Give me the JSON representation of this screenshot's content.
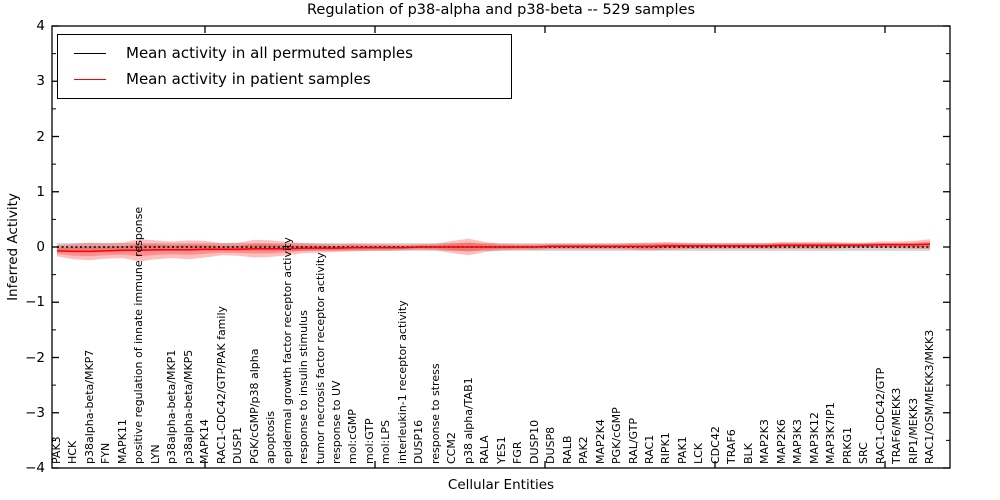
{
  "chart_data": {
    "type": "line",
    "title": "Regulation of p38-alpha and p38-beta -- 529 samples",
    "xlabel": "Cellular Entities",
    "ylabel": "Inferred Activity",
    "ylim": [
      -4,
      4
    ],
    "ytick_labels": [
      "4",
      "3",
      "2",
      "1",
      "0",
      "−1",
      "−2",
      "−3",
      "−4"
    ],
    "grid": false,
    "legend_position": "upper left",
    "legend": [
      {
        "label": "Mean activity in all permuted samples",
        "color": "#000000",
        "line_style": "dashed"
      },
      {
        "label": "Mean activity in patient samples",
        "color": "#ff0000",
        "line_style": "solid"
      }
    ],
    "categories": [
      "PAK3",
      "HCK",
      "p38alpha-beta/MKP7",
      "FYN",
      "MAPK11",
      "positive regulation of innate immune response",
      "LYN",
      "p38alpha-beta/MKP1",
      "p38alpha-beta/MKP5",
      "MAPK14",
      "RAC1-CDC42/GTP/PAK family",
      "DUSP1",
      "PGK/cGMP/p38 alpha",
      "apoptosis",
      "epidermal growth factor receptor activity",
      "response to insulin stimulus",
      "tumor necrosis factor receptor activity",
      "response to UV",
      "mol:cGMP",
      "mol:GTP",
      "mol:LPS",
      "interleukin-1 receptor activity",
      "DUSP16",
      "response to stress",
      "CCM2",
      "p38 alpha/TAB1",
      "RALA",
      "YES1",
      "FGR",
      "DUSP10",
      "DUSP8",
      "RALB",
      "PAK2",
      "MAP2K4",
      "PGK/cGMP",
      "RAL/GTP",
      "RAC1",
      "RIPK1",
      "PAK1",
      "LCK",
      "CDC42",
      "TRAF6",
      "BLK",
      "MAP2K3",
      "MAP2K6",
      "MAP3K3",
      "MAP3K12",
      "MAP3K7IP1",
      "PRKG1",
      "SRC",
      "RAC1-CDC42/GTP",
      "TRAF6/MEKK3",
      "RIP1/MEKK3",
      "RAC1/OSM/MEKK3/MKK3"
    ],
    "series": [
      {
        "name": "Mean activity in all permuted samples",
        "color": "#000000",
        "line_style": "dashed",
        "band_color": "#d6d6d6",
        "band_half_width": 0.07,
        "values": [
          0,
          0,
          0,
          0,
          0,
          0,
          0,
          0,
          0,
          0,
          0,
          0,
          0,
          0,
          0,
          0,
          0,
          0,
          0,
          0,
          0,
          0,
          0,
          0,
          0,
          0,
          0,
          0,
          0,
          0,
          0,
          0,
          0,
          0,
          0,
          0,
          0,
          0,
          0,
          0,
          0,
          0,
          0,
          0,
          0,
          0,
          0,
          0,
          0,
          0,
          0,
          0,
          0,
          0
        ]
      },
      {
        "name": "Mean activity in patient samples",
        "color": "#ff0000",
        "line_style": "solid",
        "band_color": "rgba(255,0,0,0.25)",
        "band_half_width": [
          0.1,
          0.14,
          0.16,
          0.14,
          0.14,
          0.2,
          0.17,
          0.15,
          0.17,
          0.15,
          0.11,
          0.12,
          0.16,
          0.15,
          0.12,
          0.09,
          0.08,
          0.07,
          0.07,
          0.06,
          0.06,
          0.05,
          0.05,
          0.06,
          0.11,
          0.15,
          0.09,
          0.06,
          0.05,
          0.05,
          0.05,
          0.05,
          0.05,
          0.05,
          0.05,
          0.06,
          0.07,
          0.07,
          0.06,
          0.05,
          0.05,
          0.05,
          0.05,
          0.05,
          0.06,
          0.06,
          0.06,
          0.06,
          0.05,
          0.05,
          0.06,
          0.06,
          0.07,
          0.09
        ],
        "values": [
          -0.07,
          -0.08,
          -0.08,
          -0.07,
          -0.06,
          -0.06,
          -0.05,
          -0.05,
          -0.05,
          -0.04,
          -0.04,
          -0.04,
          -0.03,
          -0.03,
          -0.03,
          -0.02,
          -0.02,
          -0.02,
          -0.01,
          -0.01,
          -0.01,
          -0.01,
          0,
          0,
          0,
          0,
          0,
          0,
          0,
          0,
          0.01,
          0.01,
          0.01,
          0.01,
          0.01,
          0.01,
          0.01,
          0.02,
          0.02,
          0.02,
          0.02,
          0.02,
          0.02,
          0.02,
          0.03,
          0.03,
          0.03,
          0.03,
          0.03,
          0.03,
          0.04,
          0.04,
          0.04,
          0.05
        ]
      }
    ]
  }
}
